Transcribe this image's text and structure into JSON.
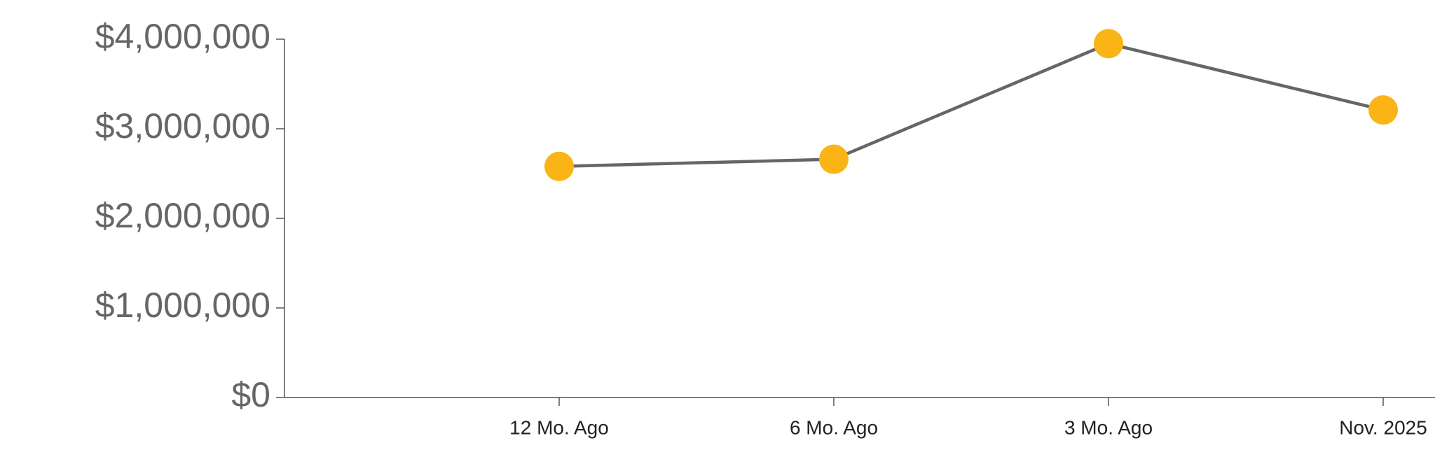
{
  "chart_data": {
    "type": "line",
    "categories": [
      "12 Mo. Ago",
      "6 Mo. Ago",
      "3 Mo. Ago",
      "Nov. 2025"
    ],
    "series": [
      {
        "color": "#666666",
        "marker_color": "#fbb416",
        "values": [
          2580000,
          2660000,
          3950000,
          3210000
        ]
      }
    ],
    "ylim": [
      0,
      4000000
    ],
    "yticks": [
      {
        "value": 0,
        "label": "$0"
      },
      {
        "value": 1000000,
        "label": "$1,000,000"
      },
      {
        "value": 2000000,
        "label": "$2,000,000"
      },
      {
        "value": 3000000,
        "label": "$3,000,000"
      },
      {
        "value": 4000000,
        "label": "$4,000,000"
      }
    ],
    "grid": false
  }
}
